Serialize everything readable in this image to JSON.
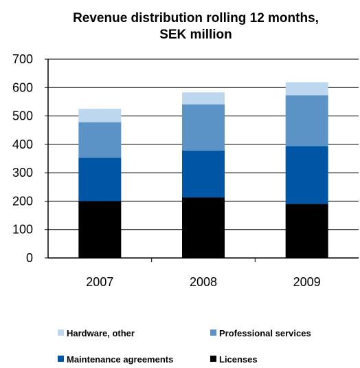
{
  "chart_data": {
    "type": "bar",
    "stacked": true,
    "title": "Revenue distribution  rolling 12 months,",
    "subtitle": "SEK million",
    "xlabel": "",
    "ylabel": "",
    "categories": [
      "2007",
      "2008",
      "2009"
    ],
    "ylim": [
      0,
      700
    ],
    "yticks": [
      0,
      100,
      200,
      300,
      400,
      500,
      600,
      700
    ],
    "grid": true,
    "legend_position": "bottom",
    "series": [
      {
        "name": "Licenses",
        "color": "#000000",
        "values": [
          200,
          213,
          190
        ]
      },
      {
        "name": "Maintenance agreements",
        "color": "#0055A5",
        "values": [
          153,
          165,
          204
        ]
      },
      {
        "name": "Professional services",
        "color": "#5B93C7",
        "values": [
          125,
          163,
          179
        ]
      },
      {
        "name": "Hardware, other",
        "color": "#BDD7EE",
        "values": [
          47,
          42,
          46
        ]
      }
    ],
    "legend_order": [
      "Hardware, other",
      "Professional services",
      "Maintenance agreements",
      "Licenses"
    ]
  }
}
